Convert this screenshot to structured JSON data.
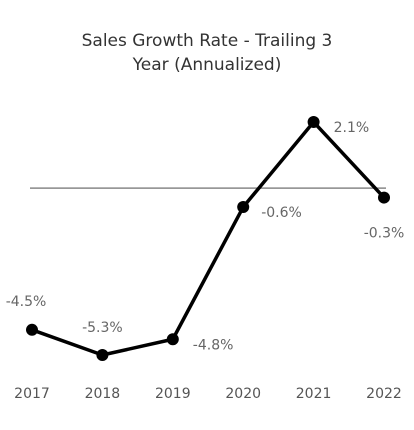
{
  "chart_data": {
    "type": "line",
    "title": "Sales Growth Rate - Trailing 3 Year (Annualized)",
    "title_lines": [
      "Sales Growth Rate - Trailing 3",
      "Year (Annualized)"
    ],
    "xlabel": "",
    "ylabel": "",
    "categories": [
      "2017",
      "2018",
      "2019",
      "2020",
      "2021",
      "2022"
    ],
    "series": [
      {
        "values": [
          -4.5,
          -5.3,
          -4.8,
          -0.6,
          2.1,
          -0.3
        ],
        "labels": [
          "-4.5%",
          "-5.3%",
          "-4.8%",
          "-0.6%",
          "2.1%",
          "-0.3%"
        ],
        "color": "#000000"
      }
    ],
    "ylim": [
      -5.3,
      2.1
    ],
    "reference_line": {
      "value": 0,
      "color": "#888888"
    },
    "grid": false,
    "legend": "none"
  }
}
